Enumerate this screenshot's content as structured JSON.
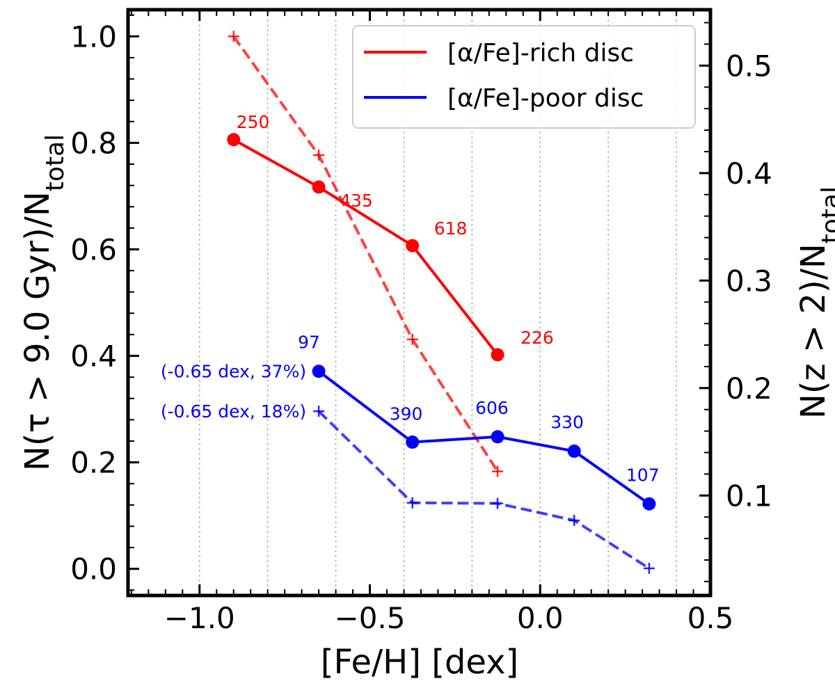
{
  "chart_data": {
    "type": "line",
    "xlabel": "[Fe/H] [dex]",
    "ylabel_left": "N(τ > 9.0 Gyr)/N_total",
    "ylabel_right": "N(z > 2)/N_total",
    "xlim": [
      -1.21,
      0.5
    ],
    "ylim_left": [
      -0.05,
      1.05
    ],
    "ylim_right": [
      0.007,
      0.552
    ],
    "x_ticks": [
      -1.0,
      -0.5,
      0.0,
      0.5
    ],
    "x_tick_labels": [
      "−1.0",
      "−0.5",
      "0.0",
      "0.5"
    ],
    "y_left_ticks": [
      0.0,
      0.2,
      0.4,
      0.6,
      0.8,
      1.0
    ],
    "y_left_tick_labels": [
      "0.0",
      "0.2",
      "0.4",
      "0.6",
      "0.8",
      "1.0"
    ],
    "y_right_ticks": [
      0.1,
      0.2,
      0.3,
      0.4,
      0.5
    ],
    "y_right_tick_labels": [
      "0.1",
      "0.2",
      "0.3",
      "0.4",
      "0.5"
    ],
    "vertical_gridlines": [
      -1.0,
      -0.8,
      -0.6,
      -0.4,
      -0.2,
      0.0,
      0.2,
      0.4
    ],
    "legend_position": "top-right",
    "series": [
      {
        "name": "[α/Fe]-rich disc",
        "legend_label": "[α/Fe]-rich disc",
        "color": "#ff0000",
        "style": "solid",
        "marker": "circle",
        "axis": "left",
        "x": [
          -0.9,
          -0.65,
          -0.375,
          -0.125
        ],
        "values": [
          0.806,
          0.717,
          0.607,
          0.402
        ],
        "counts": [
          "250",
          "435",
          "618",
          "226"
        ]
      },
      {
        "name": "[α/Fe]-poor disc",
        "legend_label": "[α/Fe]-poor disc",
        "color": "#0000ff",
        "style": "solid",
        "marker": "circle",
        "axis": "left",
        "x": [
          -0.65,
          -0.375,
          -0.125,
          0.1,
          0.32
        ],
        "values": [
          0.371,
          0.238,
          0.248,
          0.221,
          0.122
        ],
        "counts": [
          "97",
          "390",
          "606",
          "330",
          "107"
        ]
      },
      {
        "name": "[α/Fe]-rich disc (z > 2)",
        "color": "#ff0000",
        "style": "dashed",
        "marker": "plus",
        "axis": "left",
        "x": [
          -0.9,
          -0.65,
          -0.375,
          -0.125
        ],
        "values": [
          1.0,
          0.777,
          0.431,
          0.183
        ]
      },
      {
        "name": "[α/Fe]-poor disc (z > 2)",
        "color": "#0000ff",
        "style": "dashed",
        "marker": "plus",
        "axis": "left",
        "x": [
          -0.65,
          -0.375,
          -0.125,
          0.1,
          0.32
        ],
        "values": [
          0.296,
          0.124,
          0.123,
          0.091,
          0.001
        ]
      }
    ],
    "annotations": [
      {
        "text": "(-0.65 dex, 37%)",
        "color": "#0000ff",
        "x": -0.65,
        "y": 0.371
      },
      {
        "text": "(-0.65 dex, 18%)",
        "color": "#0000ff",
        "x": -0.65,
        "y": 0.296
      }
    ]
  }
}
